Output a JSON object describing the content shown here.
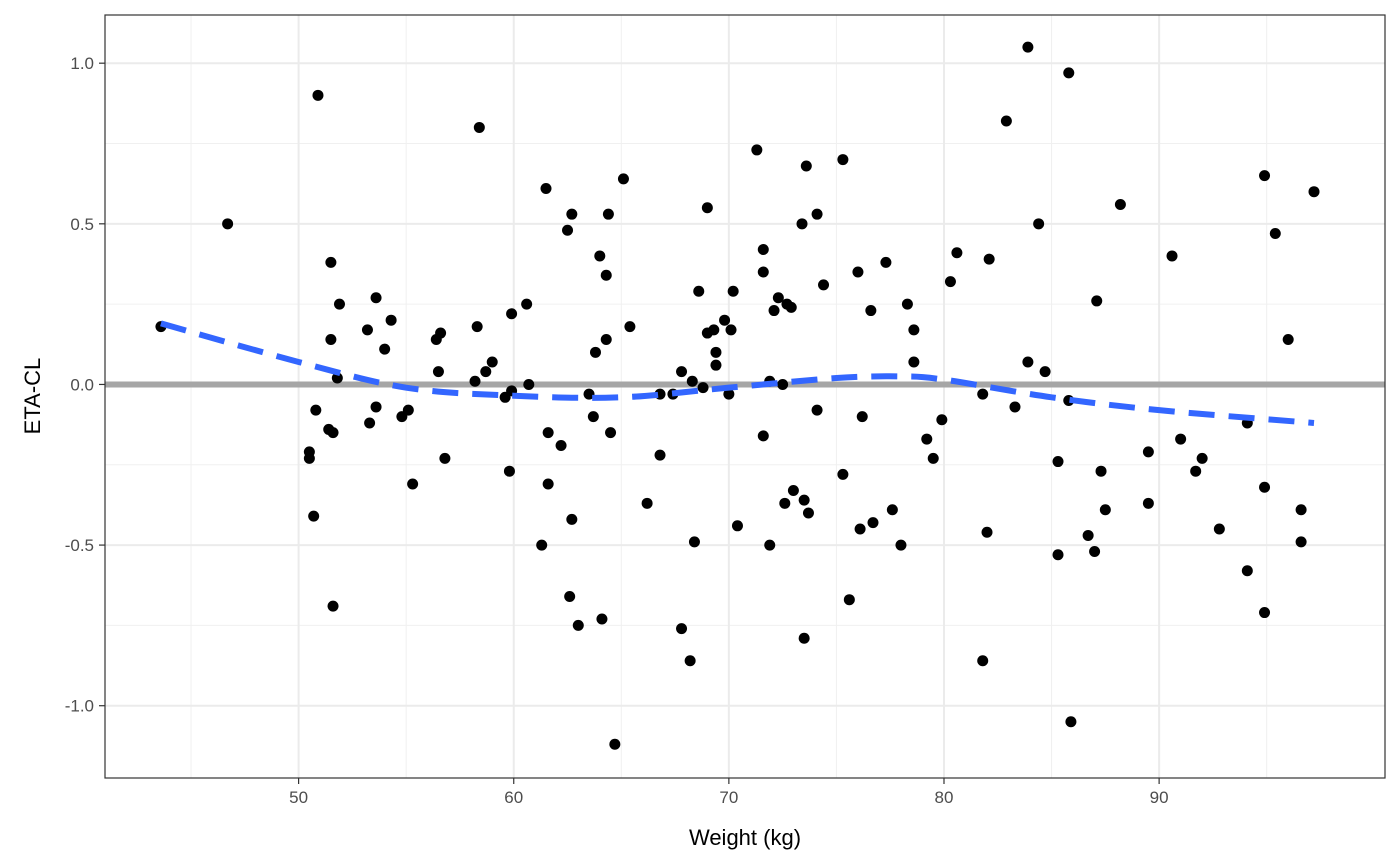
{
  "chart_data": {
    "type": "scatter",
    "xlabel": "Weight (kg)",
    "ylabel": "ETA-CL",
    "xlim": [
      41,
      100.5
    ],
    "ylim": [
      -1.225,
      1.15
    ],
    "x_ticks": [
      50,
      60,
      70,
      80,
      90
    ],
    "x_tick_labels": [
      "50",
      "60",
      "70",
      "80",
      "90"
    ],
    "y_ticks": [
      1.0,
      0.5,
      0.0,
      -0.5,
      -1.0
    ],
    "y_tick_labels": [
      "1.0",
      "0.5",
      "0.0",
      "-0.5",
      "-1.0"
    ],
    "grid": true,
    "reference_line": {
      "y": 0.0,
      "color": "#a6a6a6"
    },
    "trend_line": {
      "color": "#3366ff",
      "style": "dashed",
      "points": [
        [
          43.6,
          0.19
        ],
        [
          50,
          0.07
        ],
        [
          55,
          -0.01
        ],
        [
          60,
          -0.035
        ],
        [
          65,
          -0.04
        ],
        [
          70,
          -0.01
        ],
        [
          75,
          0.02
        ],
        [
          78,
          0.025
        ],
        [
          80,
          0.015
        ],
        [
          85,
          -0.04
        ],
        [
          90,
          -0.08
        ],
        [
          97.2,
          -0.12
        ]
      ]
    },
    "point_color": "#000000",
    "points": [
      [
        43.6,
        0.18
      ],
      [
        46.7,
        0.5
      ],
      [
        50.5,
        -0.21
      ],
      [
        50.5,
        -0.23
      ],
      [
        50.7,
        -0.41
      ],
      [
        50.8,
        -0.08
      ],
      [
        50.9,
        0.9
      ],
      [
        51.4,
        -0.14
      ],
      [
        51.5,
        0.14
      ],
      [
        51.6,
        -0.15
      ],
      [
        51.5,
        0.38
      ],
      [
        51.6,
        -0.69
      ],
      [
        51.8,
        0.02
      ],
      [
        51.9,
        0.25
      ],
      [
        53.2,
        0.17
      ],
      [
        53.3,
        -0.12
      ],
      [
        53.6,
        0.27
      ],
      [
        53.6,
        -0.07
      ],
      [
        54.0,
        0.11
      ],
      [
        54.3,
        0.2
      ],
      [
        54.8,
        -0.1
      ],
      [
        55.1,
        -0.08
      ],
      [
        55.3,
        -0.31
      ],
      [
        56.4,
        0.14
      ],
      [
        56.5,
        0.04
      ],
      [
        56.6,
        0.16
      ],
      [
        56.8,
        -0.23
      ],
      [
        58.2,
        0.01
      ],
      [
        58.3,
        0.18
      ],
      [
        58.4,
        0.8
      ],
      [
        58.7,
        0.04
      ],
      [
        59.0,
        0.07
      ],
      [
        59.6,
        -0.04
      ],
      [
        59.8,
        -0.27
      ],
      [
        59.9,
        0.22
      ],
      [
        59.9,
        -0.02
      ],
      [
        60.6,
        0.25
      ],
      [
        60.7,
        0.0
      ],
      [
        61.3,
        -0.5
      ],
      [
        61.5,
        0.61
      ],
      [
        61.6,
        -0.15
      ],
      [
        61.6,
        -0.31
      ],
      [
        62.2,
        -0.19
      ],
      [
        62.5,
        0.48
      ],
      [
        62.6,
        -0.66
      ],
      [
        62.7,
        0.53
      ],
      [
        62.7,
        -0.42
      ],
      [
        63.0,
        -0.75
      ],
      [
        63.5,
        -0.03
      ],
      [
        63.7,
        -0.1
      ],
      [
        63.8,
        0.1
      ],
      [
        64.0,
        0.4
      ],
      [
        64.1,
        -0.73
      ],
      [
        64.3,
        0.14
      ],
      [
        64.3,
        0.34
      ],
      [
        64.4,
        0.53
      ],
      [
        64.5,
        -0.15
      ],
      [
        64.7,
        -1.12
      ],
      [
        65.1,
        0.64
      ],
      [
        65.4,
        0.18
      ],
      [
        66.2,
        -0.37
      ],
      [
        66.8,
        -0.22
      ],
      [
        66.8,
        -0.03
      ],
      [
        67.4,
        -0.03
      ],
      [
        67.8,
        -0.76
      ],
      [
        67.8,
        0.04
      ],
      [
        68.2,
        -0.86
      ],
      [
        68.3,
        0.01
      ],
      [
        68.4,
        -0.49
      ],
      [
        68.6,
        0.29
      ],
      [
        68.8,
        -0.01
      ],
      [
        69.0,
        0.55
      ],
      [
        69.0,
        0.16
      ],
      [
        69.3,
        0.17
      ],
      [
        69.4,
        0.06
      ],
      [
        69.4,
        0.1
      ],
      [
        69.8,
        0.2
      ],
      [
        70.0,
        -0.03
      ],
      [
        70.1,
        0.17
      ],
      [
        70.2,
        0.29
      ],
      [
        70.4,
        -0.44
      ],
      [
        71.3,
        0.73
      ],
      [
        71.6,
        0.42
      ],
      [
        71.6,
        0.35
      ],
      [
        71.6,
        -0.16
      ],
      [
        71.9,
        0.01
      ],
      [
        71.9,
        -0.5
      ],
      [
        72.1,
        0.23
      ],
      [
        72.3,
        0.27
      ],
      [
        72.5,
        0.0
      ],
      [
        72.6,
        -0.37
      ],
      [
        72.7,
        0.25
      ],
      [
        72.9,
        0.24
      ],
      [
        73.0,
        -0.33
      ],
      [
        73.4,
        0.5
      ],
      [
        73.5,
        -0.79
      ],
      [
        73.5,
        -0.36
      ],
      [
        73.6,
        0.68
      ],
      [
        73.7,
        -0.4
      ],
      [
        74.1,
        0.53
      ],
      [
        74.1,
        -0.08
      ],
      [
        74.4,
        0.31
      ],
      [
        75.3,
        0.7
      ],
      [
        75.3,
        -0.28
      ],
      [
        75.6,
        -0.67
      ],
      [
        76.0,
        0.35
      ],
      [
        76.1,
        -0.45
      ],
      [
        76.2,
        -0.1
      ],
      [
        76.6,
        0.23
      ],
      [
        76.7,
        -0.43
      ],
      [
        77.3,
        0.38
      ],
      [
        77.6,
        -0.39
      ],
      [
        78.0,
        -0.5
      ],
      [
        78.3,
        0.25
      ],
      [
        78.6,
        0.17
      ],
      [
        78.6,
        0.07
      ],
      [
        79.2,
        -0.17
      ],
      [
        79.5,
        -0.23
      ],
      [
        79.9,
        -0.11
      ],
      [
        80.3,
        0.32
      ],
      [
        80.6,
        0.41
      ],
      [
        81.8,
        -0.03
      ],
      [
        81.8,
        -0.86
      ],
      [
        82.0,
        -0.46
      ],
      [
        82.1,
        0.39
      ],
      [
        82.9,
        0.82
      ],
      [
        83.3,
        -0.07
      ],
      [
        83.9,
        1.05
      ],
      [
        83.9,
        0.07
      ],
      [
        84.4,
        0.5
      ],
      [
        84.7,
        0.04
      ],
      [
        85.3,
        -0.24
      ],
      [
        85.3,
        -0.53
      ],
      [
        85.8,
        0.97
      ],
      [
        85.8,
        -0.05
      ],
      [
        85.9,
        -1.05
      ],
      [
        86.7,
        -0.47
      ],
      [
        87.0,
        -0.52
      ],
      [
        87.1,
        0.26
      ],
      [
        87.3,
        -0.27
      ],
      [
        87.5,
        -0.39
      ],
      [
        88.2,
        0.56
      ],
      [
        89.5,
        -0.21
      ],
      [
        89.5,
        -0.37
      ],
      [
        90.6,
        0.4
      ],
      [
        91.0,
        -0.17
      ],
      [
        91.7,
        -0.27
      ],
      [
        92.0,
        -0.23
      ],
      [
        92.8,
        -0.45
      ],
      [
        94.1,
        -0.58
      ],
      [
        94.1,
        -0.12
      ],
      [
        94.9,
        0.65
      ],
      [
        94.9,
        -0.32
      ],
      [
        94.9,
        -0.71
      ],
      [
        95.4,
        0.47
      ],
      [
        96.0,
        0.14
      ],
      [
        96.6,
        -0.39
      ],
      [
        96.6,
        -0.49
      ],
      [
        97.2,
        0.6
      ]
    ]
  }
}
